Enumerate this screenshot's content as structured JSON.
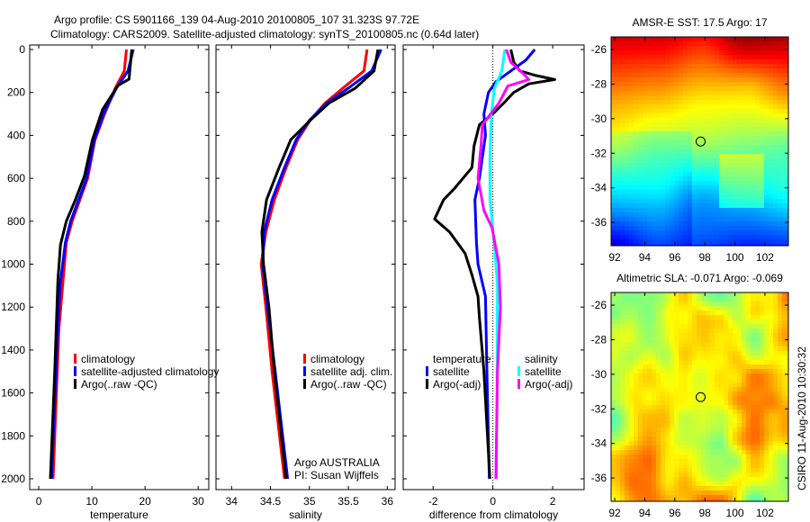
{
  "title_line1": "Argo profile: CS 5901166_139 04-Aug-2010 20100805_107 31.323S 97.72E",
  "title_line2": "Climatology: CARS2009. Satellite-adjusted climatology: synTS_20100805.nc (0.64d later)",
  "credit_line1": "Argo AUSTRALIA",
  "credit_line2": "PI: Susan Wijffels",
  "footer_stamp": "CSIRO 11-Aug-2010 10:30:32",
  "colors": {
    "climatology": "#ff0000",
    "satellite": "#0000ff",
    "argo": "#000000",
    "sal_satellite": "#00ffff",
    "sal_argo": "#ff00ff"
  },
  "chart_data": [
    {
      "type": "line",
      "xlabel": "temperature",
      "ylabel": "",
      "xlim": [
        -1.7,
        32
      ],
      "ylim": [
        0,
        2050
      ],
      "xticks": [
        "0",
        "10",
        "20",
        "30"
      ],
      "xtick_values": [
        0,
        10,
        20,
        30
      ],
      "yticks": [
        "0",
        "200",
        "400",
        "600",
        "800",
        "1000",
        "1200",
        "1400",
        "1600",
        "1800",
        "2000"
      ],
      "ytick_values": [
        0,
        200,
        400,
        600,
        800,
        1000,
        1200,
        1400,
        1600,
        1800,
        2000
      ],
      "legend": [
        "climatology",
        "satellite-adjusted climatology",
        "Argo(..raw -QC)"
      ],
      "depth": [
        0,
        100,
        180,
        300,
        420,
        600,
        800,
        900,
        1100,
        1300,
        2000
      ],
      "series": [
        {
          "name": "climatology",
          "color": "#ff0000",
          "values": [
            16.5,
            16.1,
            14.4,
            12.4,
            10.6,
            9.2,
            6.3,
            5.2,
            4.5,
            3.8,
            2.7
          ]
        },
        {
          "name": "satellite-adjusted climatology",
          "color": "#0000ff",
          "values": [
            17.8,
            16.8,
            14.6,
            12.2,
            10.5,
            9.0,
            6.0,
            5.0,
            4.0,
            3.6,
            2.4
          ]
        },
        {
          "name": "Argo(..raw -QC)",
          "color": "#000000",
          "depth": [
            0,
            138,
            168,
            280,
            420,
            590,
            700,
            800,
            910,
            1078,
            1500,
            2000
          ],
          "values": [
            17.5,
            17.0,
            14.9,
            12.0,
            10.1,
            8.6,
            6.9,
            5.2,
            4.1,
            3.6,
            3.0,
            2.2
          ]
        }
      ]
    },
    {
      "type": "line",
      "xlabel": "salinity",
      "xlim": [
        33.8,
        36.1
      ],
      "ylim": [
        0,
        2050
      ],
      "xticks": [
        "34",
        "34.5",
        "35",
        "35.5",
        "36"
      ],
      "xtick_values": [
        34,
        34.5,
        35,
        35.5,
        36
      ],
      "legend": [
        "climatology",
        "satellite adj. clim.",
        "Argo(..raw -QC)"
      ],
      "depth": [
        0,
        100,
        180,
        250,
        330,
        420,
        550,
        700,
        850,
        1000,
        1200,
        1500,
        2000
      ],
      "series": [
        {
          "name": "climatology",
          "color": "#ff0000",
          "values": [
            35.74,
            35.7,
            35.43,
            35.2,
            35.01,
            34.85,
            34.7,
            34.55,
            34.44,
            34.38,
            34.44,
            34.52,
            34.68
          ]
        },
        {
          "name": "satellite adj. clim.",
          "color": "#0000ff",
          "values": [
            35.92,
            35.8,
            35.5,
            35.22,
            35.0,
            34.83,
            34.68,
            34.52,
            34.42,
            34.4,
            34.46,
            34.56,
            34.72
          ]
        },
        {
          "name": "Argo(..raw -QC)",
          "color": "#000000",
          "values": [
            35.88,
            35.83,
            35.59,
            35.25,
            35.01,
            34.76,
            34.61,
            34.45,
            34.39,
            34.41,
            34.48,
            34.55,
            34.7
          ]
        }
      ]
    },
    {
      "type": "line",
      "xlabel": "difference from climatology",
      "xlim": [
        -3,
        3.05
      ],
      "ylim": [
        0,
        2050
      ],
      "xticks": [
        "-2",
        "0",
        "2"
      ],
      "xtick_values": [
        -2,
        0,
        2
      ],
      "legend_headers": [
        "temperature",
        "salinity"
      ],
      "legend": [
        "satellite",
        "Argo(-adj)",
        "satellite",
        "Argo(-adj)"
      ],
      "series": [
        {
          "name": "temperature satellite",
          "color": "#0000ff",
          "depth": [
            0,
            50,
            100,
            150,
            200,
            300,
            400,
            600,
            700,
            900,
            1000,
            1150,
            1500,
            2000
          ],
          "values": [
            1.4,
            1.1,
            0.6,
            0.1,
            -0.15,
            -0.3,
            -0.25,
            -0.45,
            -0.6,
            -0.55,
            -0.5,
            -0.25,
            -0.2,
            -0.12
          ]
        },
        {
          "name": "temperature Argo(-adj)",
          "color": "#000000",
          "depth": [
            0,
            60,
            100,
            120,
            140,
            160,
            200,
            250,
            300,
            350,
            450,
            550,
            650,
            700,
            790,
            850,
            950,
            1050,
            1150,
            1250,
            1500,
            2000
          ],
          "values": [
            0.6,
            0.7,
            0.9,
            1.4,
            2.07,
            1.2,
            0.7,
            0.36,
            0,
            -0.45,
            -0.63,
            -0.7,
            -1.3,
            -1.65,
            -1.95,
            -1.45,
            -0.93,
            -0.7,
            -0.5,
            -0.45,
            -0.3,
            -0.1
          ]
        },
        {
          "name": "salinity satellite",
          "color": "#00ffff",
          "depth": [
            0,
            100,
            180,
            300,
            500,
            700,
            900,
            1100,
            2000
          ],
          "values": [
            0.4,
            0.3,
            0.05,
            -0.05,
            -0.1,
            -0.1,
            0.05,
            0.15,
            0.12
          ]
        },
        {
          "name": "salinity Argo(-adj)",
          "color": "#ff00ff",
          "depth": [
            0,
            60,
            110,
            140,
            170,
            250,
            350,
            450,
            600,
            750,
            830,
            1000,
            1200,
            1500,
            2000
          ],
          "values": [
            0.45,
            0.6,
            1.0,
            1.2,
            0.5,
            0.2,
            -0.35,
            -0.4,
            -0.5,
            -0.3,
            -0.03,
            0.2,
            0.25,
            0.15,
            0.1
          ]
        }
      ]
    },
    {
      "type": "heatmap",
      "title": "AMSR-E SST: 17.5 Argo: 17",
      "xlim": [
        91.76,
        103.56
      ],
      "ylim": [
        -37.35,
        -25.27
      ],
      "xticks": [
        "92",
        "94",
        "96",
        "98",
        "100",
        "102"
      ],
      "xtick_values": [
        92,
        94,
        96,
        98,
        100,
        102
      ],
      "yticks": [
        "-26",
        "-28",
        "-30",
        "-32",
        "-34",
        "-36"
      ],
      "ytick_values": [
        -26,
        -28,
        -30,
        -32,
        -34,
        -36
      ],
      "marker": {
        "lon": 97.72,
        "lat": -31.323
      }
    },
    {
      "type": "heatmap",
      "title": "Altimetric SLA: -0.071 Argo: -0.069",
      "xlim": [
        91.76,
        103.56
      ],
      "ylim": [
        -37.35,
        -25.27
      ],
      "xticks": [
        "92",
        "94",
        "96",
        "98",
        "100",
        "102"
      ],
      "xtick_values": [
        92,
        94,
        96,
        98,
        100,
        102
      ],
      "yticks": [
        "-26",
        "-28",
        "-30",
        "-32",
        "-34",
        "-36"
      ],
      "ytick_values": [
        -26,
        -28,
        -30,
        -32,
        -34,
        -36
      ],
      "marker": {
        "lon": 97.72,
        "lat": -31.323
      }
    }
  ]
}
